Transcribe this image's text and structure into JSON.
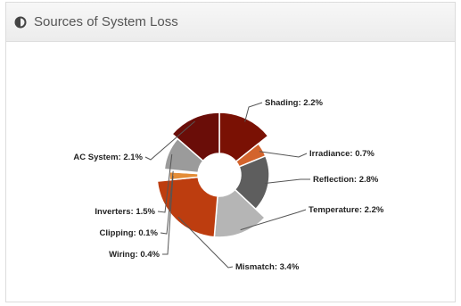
{
  "panel": {
    "title": "Sources of System Loss",
    "icon": "half-circle-icon"
  },
  "chart_data": {
    "type": "pie",
    "donut": true,
    "title": "",
    "slices": [
      {
        "label": "Shading: 2.2%",
        "value": 2.2,
        "color": "#7a1104"
      },
      {
        "label": "Irradiance: 0.7%",
        "value": 0.7,
        "color": "#d3642d"
      },
      {
        "label": "Reflection: 2.8%",
        "value": 2.8,
        "color": "#5e5e5e"
      },
      {
        "label": "Temperature: 2.2%",
        "value": 2.2,
        "color": "#b5b5b5"
      },
      {
        "label": "Mismatch: 3.4%",
        "value": 3.4,
        "color": "#bd3d0f"
      },
      {
        "label": "Wiring: 0.4%",
        "value": 0.4,
        "color": "#e48d37"
      },
      {
        "label": "Clipping: 0.1%",
        "value": 0.1,
        "color": "#ececec"
      },
      {
        "label": "Inverters: 1.5%",
        "value": 1.5,
        "color": "#9b9b9b"
      },
      {
        "label": "AC System: 2.1%",
        "value": 2.1,
        "color": "#6a0d08"
      }
    ]
  }
}
